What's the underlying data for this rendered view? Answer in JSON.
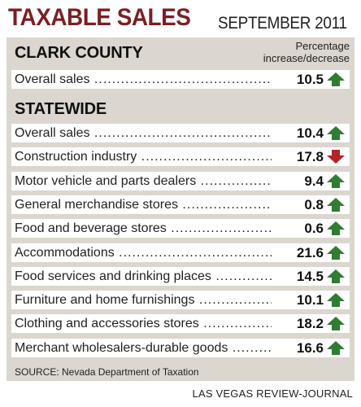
{
  "header": {
    "title": "TAXABLE SALES",
    "subtitle": "SEPTEMBER 2011"
  },
  "column_note": [
    "Percentage",
    "increase/decrease"
  ],
  "sections": {
    "clark": {
      "heading": "CLARK COUNTY"
    },
    "statewide": {
      "heading": "STATEWIDE"
    }
  },
  "colors": {
    "increase": "#2e7d32",
    "decrease": "#b3232b",
    "title": "#7a1f23",
    "panel": "#dbd6cf"
  },
  "chart_data": {
    "type": "table",
    "groups": [
      {
        "name": "CLARK COUNTY",
        "rows": [
          {
            "label": "Overall sales",
            "value": "10.5",
            "direction": "increase"
          }
        ]
      },
      {
        "name": "STATEWIDE",
        "rows": [
          {
            "label": "Overall sales",
            "value": "10.4",
            "direction": "increase"
          },
          {
            "label": "Construction industry",
            "value": "17.8",
            "direction": "decrease"
          },
          {
            "label": "Motor vehicle and parts dealers",
            "value": "9.4",
            "direction": "increase"
          },
          {
            "label": "General merchandise stores",
            "value": "0.8",
            "direction": "increase"
          },
          {
            "label": "Food and beverage stores",
            "value": "0.6",
            "direction": "increase"
          },
          {
            "label": "Accommodations",
            "value": "21.6",
            "direction": "increase"
          },
          {
            "label": "Food services and drinking places",
            "value": "14.5",
            "direction": "increase"
          },
          {
            "label": "Furniture and home furnishings",
            "value": "10.1",
            "direction": "increase"
          },
          {
            "label": "Clothing and accessories stores",
            "value": "18.2",
            "direction": "increase"
          },
          {
            "label": "Merchant wholesalers-durable goods",
            "value": "16.6",
            "direction": "increase"
          }
        ]
      }
    ]
  },
  "footer": {
    "source": "SOURCE: Nevada Department of Taxation",
    "credit": "LAS VEGAS REVIEW-JOURNAL"
  }
}
